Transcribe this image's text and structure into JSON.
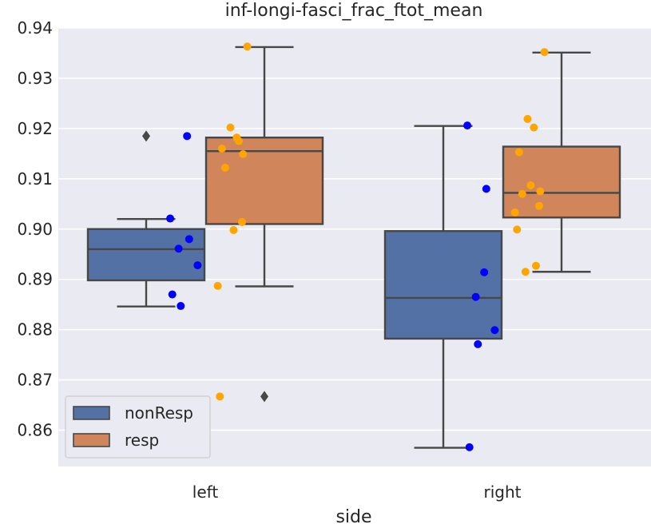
{
  "chart_data": {
    "type": "box",
    "title": "inf-longi-fasci_frac_ftot_mean",
    "xlabel": "side",
    "ylabel": "",
    "categories": [
      "left",
      "right"
    ],
    "ylim": [
      0.8525,
      0.94
    ],
    "yticks": [
      "0.86",
      "0.87",
      "0.88",
      "0.89",
      "0.90",
      "0.91",
      "0.92",
      "0.93",
      "0.94"
    ],
    "ytick_values": [
      0.86,
      0.87,
      0.88,
      0.89,
      0.9,
      0.91,
      0.92,
      0.93,
      0.94
    ],
    "grid": true,
    "legend": {
      "placement": "lower-left"
    },
    "series": [
      {
        "name": "nonResp",
        "color": "#5471a5",
        "point_color": "#0000ff",
        "boxes": [
          {
            "category": "left",
            "whisker_low": 0.8846,
            "q1": 0.8898,
            "median": 0.896,
            "q3": 0.9,
            "whisker_high": 0.902,
            "outliers": [
              0.9185
            ]
          },
          {
            "category": "right",
            "whisker_low": 0.8565,
            "q1": 0.8782,
            "median": 0.8863,
            "q3": 0.8996,
            "whisker_high": 0.9205,
            "outliers": []
          }
        ],
        "points": [
          {
            "category": "left",
            "values": [
              0.9021,
              0.898,
              0.8961,
              0.8928,
              0.8847,
              0.9185,
              0.887
            ]
          },
          {
            "category": "right",
            "values": [
              0.9206,
              0.908,
              0.8865,
              0.8799,
              0.8771,
              0.8914,
              0.8566
            ]
          }
        ]
      },
      {
        "name": "resp",
        "color": "#d1855b",
        "point_color": "#ffa500",
        "boxes": [
          {
            "category": "left",
            "whisker_low": 0.8886,
            "q1": 0.901,
            "median": 0.9155,
            "q3": 0.9182,
            "whisker_high": 0.9362,
            "outliers": [
              0.8667
            ]
          },
          {
            "category": "right",
            "whisker_low": 0.8915,
            "q1": 0.9023,
            "median": 0.9072,
            "q3": 0.9164,
            "whisker_high": 0.9351,
            "outliers": []
          }
        ],
        "points": [
          {
            "category": "left",
            "values": [
              0.9363,
              0.9202,
              0.9182,
              0.916,
              0.9149,
              0.9122,
              0.9014,
              0.8998,
              0.8887,
              0.8667,
              0.9175
            ]
          },
          {
            "category": "right",
            "values": [
              0.9352,
              0.9219,
              0.9202,
              0.9153,
              0.9075,
              0.907,
              0.9046,
              0.9087,
              0.9033,
              0.8999,
              0.8927,
              0.8915
            ]
          }
        ]
      }
    ]
  }
}
